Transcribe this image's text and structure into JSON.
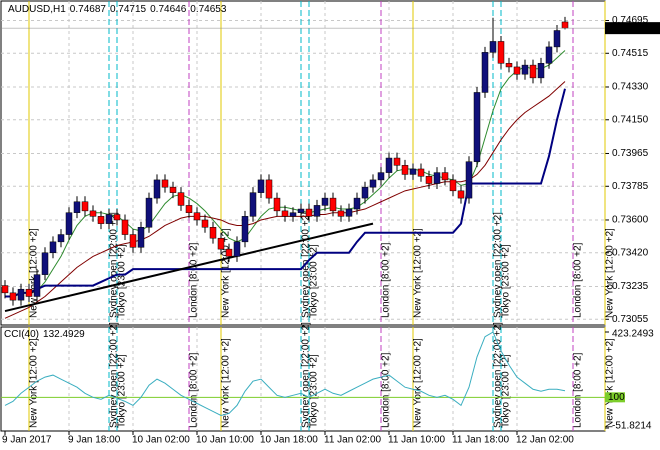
{
  "chart_data": [
    {
      "type": "candlestick",
      "symbol": "AUDUSD,H1",
      "categories": [
        "9 Jan 2017",
        null,
        null,
        null,
        null,
        null,
        null,
        null,
        "9 Jan 18:00",
        null,
        null,
        null,
        null,
        null,
        null,
        null,
        "10 Jan 02:00",
        null,
        null,
        null,
        null,
        null,
        null,
        null,
        "10 Jan 10:00",
        null,
        null,
        null,
        null,
        null,
        null,
        null,
        "10 Jan 18:00",
        null,
        null,
        null,
        null,
        null,
        null,
        null,
        "11 Jan 02:00",
        null,
        null,
        null,
        null,
        null,
        null,
        null,
        "11 Jan 10:00",
        null,
        null,
        null,
        null,
        null,
        null,
        null,
        "11 Jan 18:00",
        null,
        null,
        null,
        null,
        null,
        null,
        null,
        "12 Jan 02:00",
        null,
        null,
        null,
        null,
        null,
        null
      ],
      "open": [
        0.7324,
        0.732,
        0.7316,
        0.7322,
        0.7318,
        0.733,
        0.7342,
        0.7348,
        0.7352,
        0.7364,
        0.737,
        0.7365,
        0.7362,
        0.7358,
        0.7363,
        0.736,
        0.7352,
        0.7345,
        0.7356,
        0.7372,
        0.7382,
        0.7378,
        0.7375,
        0.7368,
        0.7364,
        0.736,
        0.7356,
        0.735,
        0.7344,
        0.734,
        0.7348,
        0.7362,
        0.7375,
        0.7382,
        0.7372,
        0.7365,
        0.7362,
        0.7364,
        0.7366,
        0.7362,
        0.7368,
        0.7372,
        0.7365,
        0.7362,
        0.7366,
        0.7372,
        0.7378,
        0.7382,
        0.7386,
        0.7394,
        0.739,
        0.7385,
        0.7388,
        0.7384,
        0.738,
        0.7386,
        0.7382,
        0.7376,
        0.7372,
        0.7392,
        0.743,
        0.7452,
        0.7458,
        0.7446,
        0.7444,
        0.744,
        0.7445,
        0.7438,
        0.7446,
        0.7455,
        0.74687
      ],
      "high": [
        0.7327,
        0.7323,
        0.7325,
        0.7325,
        0.7333,
        0.7345,
        0.7351,
        0.7355,
        0.7367,
        0.7373,
        0.7373,
        0.7368,
        0.7365,
        0.7366,
        0.7366,
        0.7363,
        0.7355,
        0.7359,
        0.7375,
        0.7385,
        0.7385,
        0.7381,
        0.7378,
        0.7371,
        0.7367,
        0.7363,
        0.7359,
        0.7353,
        0.7347,
        0.7351,
        0.7365,
        0.7378,
        0.7385,
        0.7385,
        0.7375,
        0.7368,
        0.7367,
        0.7369,
        0.7369,
        0.7371,
        0.7375,
        0.7375,
        0.7368,
        0.7369,
        0.7375,
        0.7381,
        0.7385,
        0.7389,
        0.7397,
        0.7397,
        0.7393,
        0.7391,
        0.7391,
        0.7387,
        0.7389,
        0.7389,
        0.7385,
        0.7379,
        0.7395,
        0.7433,
        0.7455,
        0.7471,
        0.7461,
        0.7449,
        0.7447,
        0.7448,
        0.7448,
        0.7449,
        0.7458,
        0.7467,
        0.74715
      ],
      "low": [
        0.7317,
        0.7313,
        0.7313,
        0.7315,
        0.7315,
        0.7327,
        0.7339,
        0.7345,
        0.7349,
        0.7361,
        0.7362,
        0.7359,
        0.7355,
        0.7355,
        0.7357,
        0.7349,
        0.7342,
        0.7342,
        0.7353,
        0.7369,
        0.7375,
        0.7372,
        0.7365,
        0.7361,
        0.7357,
        0.7353,
        0.7347,
        0.7341,
        0.7337,
        0.7337,
        0.7345,
        0.7359,
        0.7372,
        0.7369,
        0.7362,
        0.7359,
        0.7359,
        0.7361,
        0.7359,
        0.7359,
        0.7365,
        0.7362,
        0.7359,
        0.7359,
        0.7363,
        0.7369,
        0.7375,
        0.7379,
        0.7383,
        0.7387,
        0.7382,
        0.7382,
        0.7381,
        0.7377,
        0.7377,
        0.7379,
        0.7373,
        0.7369,
        0.7369,
        0.7389,
        0.7427,
        0.7449,
        0.7443,
        0.7441,
        0.7437,
        0.7437,
        0.7435,
        0.7435,
        0.7443,
        0.7452,
        0.74646
      ],
      "close": [
        0.732,
        0.7316,
        0.7322,
        0.7318,
        0.733,
        0.7342,
        0.7348,
        0.7352,
        0.7364,
        0.737,
        0.7365,
        0.7362,
        0.7358,
        0.7363,
        0.736,
        0.7352,
        0.7345,
        0.7356,
        0.7372,
        0.7382,
        0.7378,
        0.7375,
        0.7368,
        0.7364,
        0.736,
        0.7356,
        0.735,
        0.7344,
        0.734,
        0.7348,
        0.7362,
        0.7375,
        0.7382,
        0.7372,
        0.7365,
        0.7362,
        0.7364,
        0.7366,
        0.7362,
        0.7368,
        0.7372,
        0.7365,
        0.7362,
        0.7366,
        0.7372,
        0.7378,
        0.7382,
        0.7386,
        0.7394,
        0.739,
        0.7385,
        0.7388,
        0.7384,
        0.738,
        0.7386,
        0.7382,
        0.7376,
        0.7372,
        0.7392,
        0.743,
        0.7452,
        0.7458,
        0.7446,
        0.7444,
        0.744,
        0.7445,
        0.7438,
        0.7446,
        0.7455,
        0.7464,
        0.74653
      ],
      "up_color": "#10107a",
      "down_color": "#ff0000",
      "series": [
        {
          "color": "#2e8b2e",
          "values": [
            null,
            null,
            null,
            null,
            0.7321,
            0.7326,
            0.7333,
            0.734,
            0.7349,
            0.7357,
            0.7362,
            0.7364,
            0.7364,
            0.7363,
            0.7362,
            0.7359,
            0.7355,
            0.7354,
            0.7357,
            0.7363,
            0.7369,
            0.7373,
            0.7374,
            0.7372,
            0.7369,
            0.7365,
            0.736,
            0.7355,
            0.735,
            0.7348,
            0.735,
            0.7356,
            0.7362,
            0.7366,
            0.7367,
            0.7367,
            0.7366,
            0.7365,
            0.7364,
            0.7365,
            0.7366,
            0.7367,
            0.7366,
            0.7366,
            0.7367,
            0.737,
            0.7374,
            0.7378,
            0.7383,
            0.7387,
            0.7388,
            0.7388,
            0.7387,
            0.7385,
            0.7384,
            0.7383,
            0.7382,
            0.7379,
            0.738,
            0.739,
            0.7405,
            0.742,
            0.7432,
            0.7438,
            0.7442,
            0.7444,
            0.7443,
            0.7443,
            0.7445,
            0.7449,
            0.7453
          ]
        },
        {
          "color": "#800000",
          "values": [
            0.7306,
            0.7308,
            0.731,
            0.7312,
            0.7315,
            0.7318,
            0.7322,
            0.7326,
            0.733,
            0.7334,
            0.7337,
            0.734,
            0.7342,
            0.7344,
            0.7346,
            0.7347,
            0.7348,
            0.7349,
            0.7351,
            0.7354,
            0.7357,
            0.7359,
            0.7361,
            0.7362,
            0.7362,
            0.7362,
            0.7361,
            0.736,
            0.7358,
            0.7357,
            0.7357,
            0.7358,
            0.736,
            0.7361,
            0.7362,
            0.7362,
            0.7362,
            0.7362,
            0.7362,
            0.7363,
            0.7363,
            0.7364,
            0.7364,
            0.7364,
            0.7365,
            0.7366,
            0.7368,
            0.737,
            0.7372,
            0.7374,
            0.7376,
            0.7377,
            0.7378,
            0.7379,
            0.738,
            0.7381,
            0.7381,
            0.7381,
            0.7382,
            0.7385,
            0.739,
            0.7397,
            0.7404,
            0.741,
            0.7415,
            0.7419,
            0.7422,
            0.7425,
            0.7428,
            0.7432,
            0.7436
          ]
        },
        {
          "color": "#000080",
          "values": [
            0.7318,
            0.7318,
            0.732,
            0.732,
            0.7322,
            0.7324,
            0.7324,
            0.7324,
            0.7324,
            0.7324,
            0.7324,
            0.7324,
            0.7326,
            0.7328,
            0.733,
            0.733,
            0.7333,
            0.7333,
            0.7333,
            0.7333,
            0.7333,
            0.7333,
            0.7333,
            0.7333,
            0.7333,
            0.7333,
            0.7333,
            0.7333,
            0.7333,
            0.7333,
            0.7333,
            0.7333,
            0.7333,
            0.7333,
            0.7333,
            0.7333,
            0.7333,
            0.7333,
            0.7338,
            0.7342,
            0.7342,
            0.7342,
            0.7342,
            0.7342,
            0.7348,
            0.7353,
            0.7353,
            0.7353,
            0.7353,
            0.7353,
            0.7353,
            0.7353,
            0.7353,
            0.7353,
            0.7353,
            0.7353,
            0.7353,
            0.7358,
            0.738,
            0.738,
            0.738,
            0.738,
            0.738,
            0.738,
            0.738,
            0.738,
            0.738,
            0.738,
            0.7395,
            0.7415,
            0.7432
          ]
        }
      ],
      "trend_line": {
        "x": [
          0,
          46
        ],
        "y": [
          0.731,
          0.7358
        ],
        "color": "#000000"
      },
      "sessions": [
        {
          "label": "New York [12:00 +2]",
          "index": 3,
          "color": "#e0c800"
        },
        {
          "label": "Sydney open [22:00 +2]",
          "index": 13,
          "color": "#00b8c8"
        },
        {
          "label": "Tokyo [23:00 +2]",
          "index": 14,
          "color": "#00b8c8"
        },
        {
          "label": "London [8:00 +2]",
          "index": 23,
          "color": "#c040c0"
        },
        {
          "label": "New York [12:00 +2]",
          "index": 27,
          "color": "#e0c800"
        },
        {
          "label": "Sydney open [22:00 +2]",
          "index": 37,
          "color": "#00b8c8"
        },
        {
          "label": "Tokyo [23:00 +2]",
          "index": 38,
          "color": "#00b8c8"
        },
        {
          "label": "London [8:00 +2]",
          "index": 47,
          "color": "#c040c0"
        },
        {
          "label": "New York [12:00 +2]",
          "index": 51,
          "color": "#e0c800"
        },
        {
          "label": "Sydney open [22:00 +2]",
          "index": 61,
          "color": "#00b8c8"
        },
        {
          "label": "Tokyo [23:00 +2]",
          "index": 62,
          "color": "#00b8c8"
        },
        {
          "label": "London [8:00 +2]",
          "index": 71,
          "color": "#c040c0"
        },
        {
          "label": "New York [12:00 +2]",
          "index": 75,
          "color": "#e0c800"
        }
      ],
      "ylim": [
        0.7304,
        0.7478
      ],
      "yticks": [
        0.74695,
        0.74515,
        {
          "value": 0.7433,
          "label": "0.74330"
        },
        {
          "value": 0.7415,
          "label": "0.74150"
        },
        0.73965,
        0.73785,
        {
          "value": 0.736,
          "label": "0.73600"
        },
        {
          "value": 0.7342,
          "label": "0.73420"
        },
        0.73235,
        0.73055
      ],
      "grid": true
    },
    {
      "type": "line",
      "title": "CCI(40)",
      "color": "#3aaec0",
      "values": [
        60,
        80,
        120,
        150,
        180,
        200,
        210,
        190,
        170,
        150,
        120,
        100,
        90,
        110,
        95,
        80,
        60,
        100,
        160,
        190,
        170,
        140,
        110,
        90,
        70,
        50,
        30,
        10,
        20,
        60,
        130,
        180,
        190,
        150,
        110,
        100,
        110,
        120,
        100,
        120,
        140,
        120,
        110,
        130,
        150,
        170,
        190,
        200,
        210,
        180,
        150,
        140,
        130,
        110,
        100,
        110,
        90,
        60,
        150,
        300,
        400,
        423,
        330,
        260,
        200,
        170,
        140,
        130,
        140,
        140,
        132.4929
      ],
      "ylim": [
        -51.8214,
        423.2493
      ],
      "yticks": [
        423.2493,
        -51.8214
      ],
      "levels": [
        100
      ],
      "level_color": "#7ccd2a"
    }
  ]
}
